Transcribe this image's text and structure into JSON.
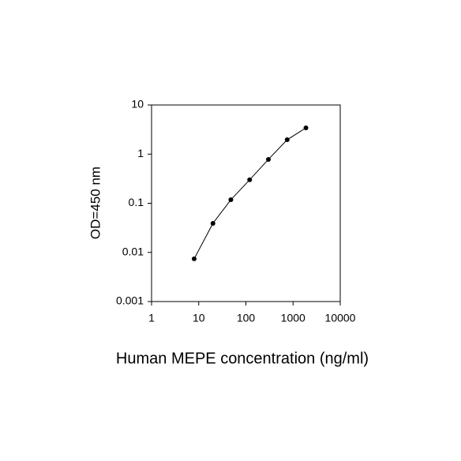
{
  "chart_data": {
    "type": "line",
    "x_label": "Human MEPE concentration (ng/ml)",
    "y_label": "OD=450 nm",
    "x": [
      8,
      20,
      48,
      120,
      300,
      750,
      1875
    ],
    "values": [
      0.0074,
      0.039,
      0.118,
      0.3,
      0.78,
      1.96,
      3.42
    ],
    "color": "#000000",
    "xlim": [
      1,
      10000
    ],
    "ylim": [
      0.001,
      10
    ],
    "xticks": [
      1,
      10,
      100,
      1000,
      10000
    ],
    "yticks": [
      0.001,
      0.01,
      0.1,
      1,
      10
    ],
    "xlog": true,
    "ylog": true
  }
}
